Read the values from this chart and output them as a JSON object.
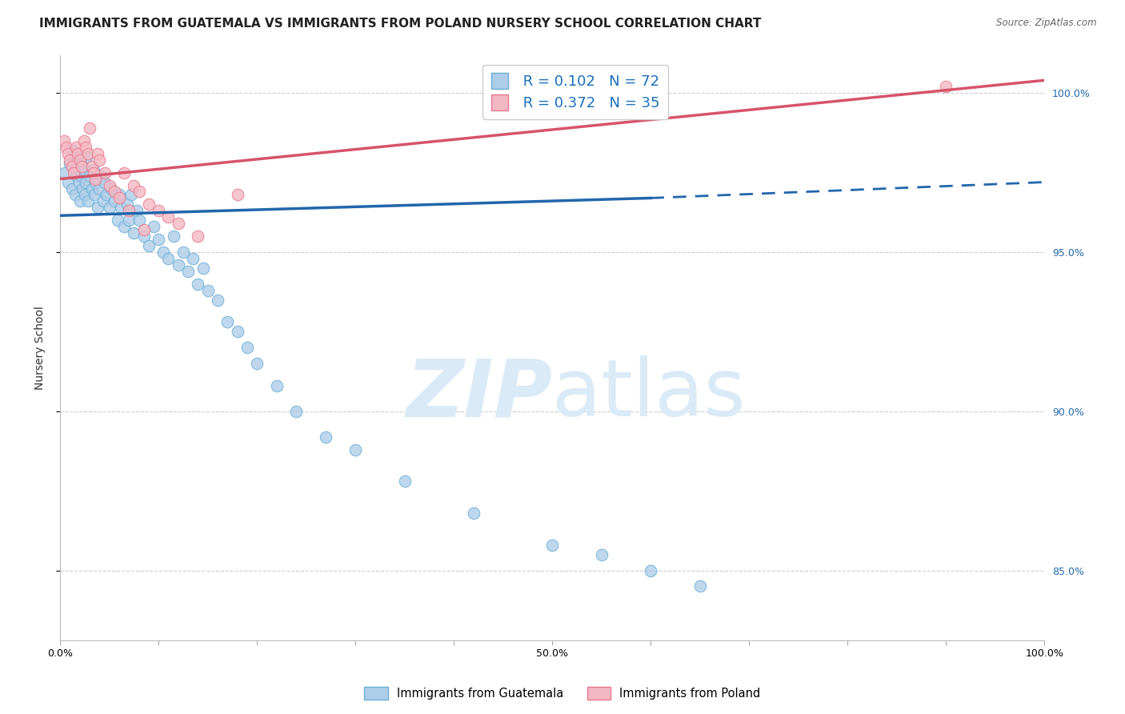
{
  "title": "IMMIGRANTS FROM GUATEMALA VS IMMIGRANTS FROM POLAND NURSERY SCHOOL CORRELATION CHART",
  "source_text": "Source: ZipAtlas.com",
  "ylabel": "Nursery School",
  "xlim": [
    0.0,
    1.0
  ],
  "ylim": [
    0.828,
    1.012
  ],
  "x_tick_positions": [
    0.0,
    0.1,
    0.2,
    0.3,
    0.4,
    0.5,
    0.6,
    0.7,
    0.8,
    0.9,
    1.0
  ],
  "x_tick_labels": [
    "0.0%",
    "",
    "",
    "",
    "",
    "50.0%",
    "",
    "",
    "",
    "",
    "100.0%"
  ],
  "y_ticks_right": [
    0.85,
    0.9,
    0.95,
    1.0
  ],
  "y_tick_labels_right": [
    "85.0%",
    "90.0%",
    "95.0%",
    "100.0%"
  ],
  "legend_R_color": "#1a6fbd",
  "guatemala_color": "#aecde8",
  "guatemala_edge_color": "#6aaed6",
  "poland_color": "#f4b8c4",
  "poland_edge_color": "#e8788a",
  "trend_guatemala_color": "#2166ac",
  "trend_poland_color": "#d6546a",
  "watermark_color": "#daeaf7",
  "grid_color": "#cccccc",
  "title_fontsize": 11,
  "axis_label_fontsize": 10,
  "tick_fontsize": 9,
  "guatemala_points_x": [
    0.005,
    0.008,
    0.01,
    0.012,
    0.013,
    0.015,
    0.016,
    0.017,
    0.018,
    0.019,
    0.02,
    0.021,
    0.022,
    0.023,
    0.024,
    0.025,
    0.026,
    0.027,
    0.028,
    0.03,
    0.032,
    0.034,
    0.035,
    0.036,
    0.038,
    0.04,
    0.042,
    0.044,
    0.045,
    0.047,
    0.05,
    0.052,
    0.055,
    0.058,
    0.06,
    0.062,
    0.065,
    0.068,
    0.07,
    0.072,
    0.075,
    0.078,
    0.08,
    0.085,
    0.09,
    0.095,
    0.1,
    0.105,
    0.11,
    0.115,
    0.12,
    0.125,
    0.13,
    0.135,
    0.14,
    0.145,
    0.15,
    0.16,
    0.17,
    0.18,
    0.19,
    0.2,
    0.22,
    0.24,
    0.27,
    0.3,
    0.35,
    0.42,
    0.5,
    0.55,
    0.6,
    0.65
  ],
  "guatemala_points_y": [
    0.975,
    0.972,
    0.978,
    0.97,
    0.982,
    0.968,
    0.976,
    0.974,
    0.98,
    0.972,
    0.966,
    0.978,
    0.974,
    0.97,
    0.976,
    0.968,
    0.972,
    0.98,
    0.966,
    0.974,
    0.97,
    0.976,
    0.968,
    0.972,
    0.964,
    0.97,
    0.974,
    0.966,
    0.972,
    0.968,
    0.964,
    0.97,
    0.966,
    0.96,
    0.968,
    0.964,
    0.958,
    0.965,
    0.96,
    0.968,
    0.956,
    0.963,
    0.96,
    0.955,
    0.952,
    0.958,
    0.954,
    0.95,
    0.948,
    0.955,
    0.946,
    0.95,
    0.944,
    0.948,
    0.94,
    0.945,
    0.938,
    0.935,
    0.928,
    0.925,
    0.92,
    0.915,
    0.908,
    0.9,
    0.892,
    0.888,
    0.878,
    0.868,
    0.858,
    0.855,
    0.85,
    0.845
  ],
  "poland_points_x": [
    0.004,
    0.006,
    0.008,
    0.01,
    0.012,
    0.014,
    0.016,
    0.018,
    0.02,
    0.022,
    0.024,
    0.026,
    0.028,
    0.03,
    0.032,
    0.034,
    0.036,
    0.038,
    0.04,
    0.045,
    0.05,
    0.055,
    0.06,
    0.065,
    0.07,
    0.075,
    0.08,
    0.085,
    0.09,
    0.1,
    0.11,
    0.12,
    0.14,
    0.18,
    0.9
  ],
  "poland_points_y": [
    0.985,
    0.983,
    0.981,
    0.979,
    0.977,
    0.975,
    0.983,
    0.981,
    0.979,
    0.977,
    0.985,
    0.983,
    0.981,
    0.989,
    0.977,
    0.975,
    0.973,
    0.981,
    0.979,
    0.975,
    0.971,
    0.969,
    0.967,
    0.975,
    0.963,
    0.971,
    0.969,
    0.957,
    0.965,
    0.963,
    0.961,
    0.959,
    0.955,
    0.968,
    1.002
  ],
  "trend_blue_x_start": 0.0,
  "trend_blue_y_start": 0.9615,
  "trend_blue_x_end": 0.6,
  "trend_blue_y_end": 0.967,
  "trend_blue_dashed_x_end": 1.0,
  "trend_blue_dashed_y_end": 0.972,
  "trend_pink_x_start": 0.0,
  "trend_pink_y_start": 0.973,
  "trend_pink_x_end": 1.0,
  "trend_pink_y_end": 1.004
}
